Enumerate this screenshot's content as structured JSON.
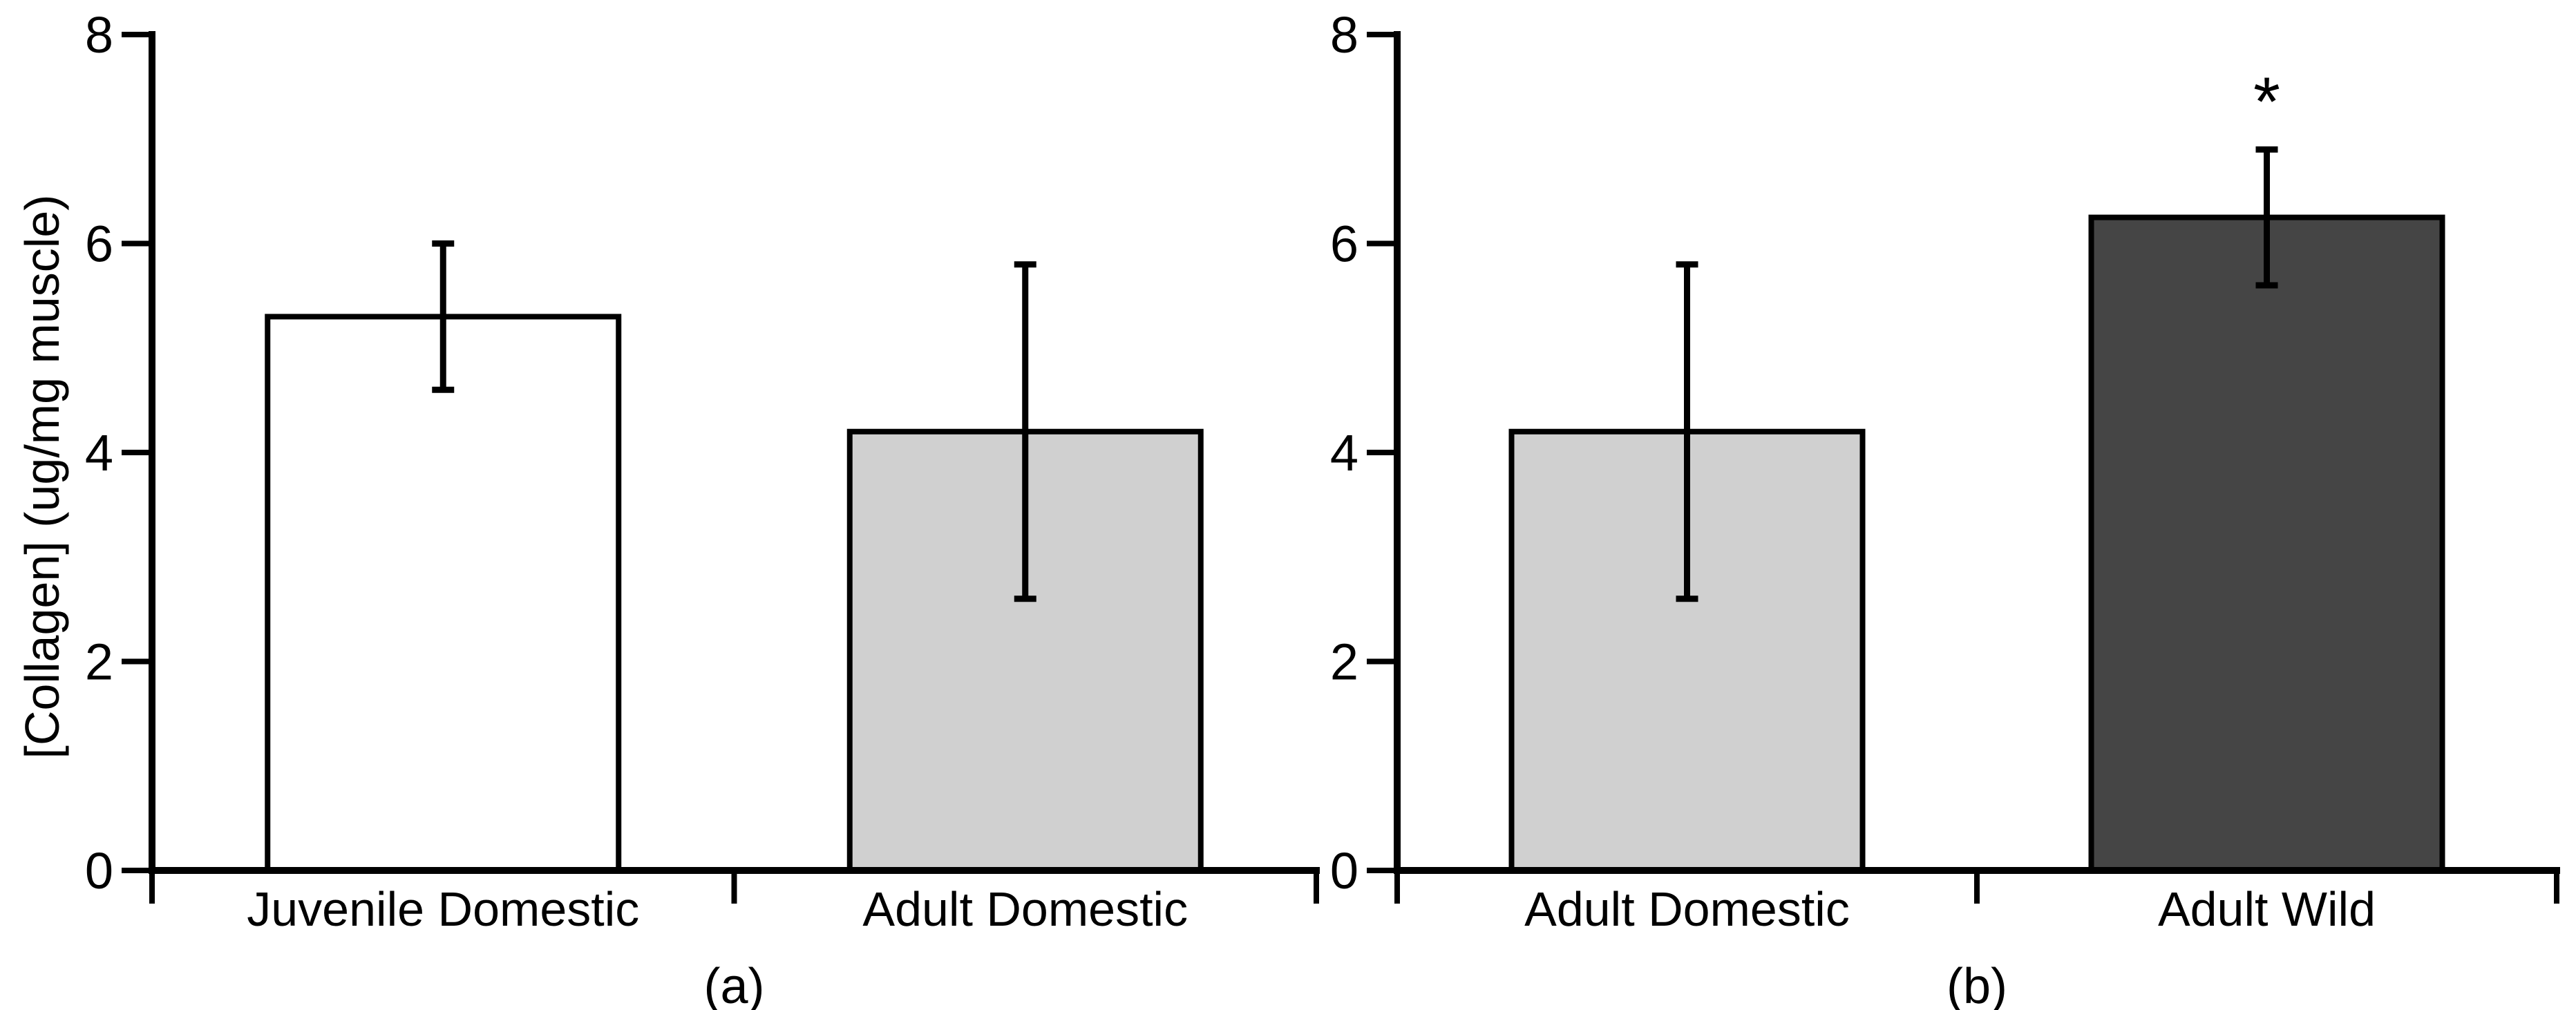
{
  "figure": {
    "background": "#ffffff",
    "axis_color": "#000000",
    "text_color": "#000000"
  },
  "chart_data": [
    {
      "type": "bar",
      "panel_label": "(a)",
      "title": "",
      "xlabel": "",
      "ylabel": "[Collagen] (ug/mg muscle)",
      "categories": [
        "Juvenile Domestic",
        "Adult Domestic"
      ],
      "values": [
        5.3,
        4.2
      ],
      "error_low": [
        4.6,
        2.6
      ],
      "error_high": [
        6.0,
        5.8
      ],
      "bar_colors": [
        "#ffffff",
        "#d0d0d0"
      ],
      "bar_edge_color": "#000000",
      "annotations": [
        "",
        ""
      ],
      "ylim": [
        0,
        8
      ],
      "yticks": [
        0,
        2,
        4,
        6,
        8
      ],
      "grid": false,
      "legend": "none"
    },
    {
      "type": "bar",
      "panel_label": "(b)",
      "title": "",
      "xlabel": "",
      "ylabel": "",
      "categories": [
        "Adult Domestic",
        "Adult Wild"
      ],
      "values": [
        4.2,
        6.25
      ],
      "error_low": [
        2.6,
        5.6
      ],
      "error_high": [
        5.8,
        6.9
      ],
      "bar_colors": [
        "#d0d0d0",
        "#454545"
      ],
      "bar_edge_color": "#000000",
      "annotations": [
        "",
        "*"
      ],
      "ylim": [
        0,
        8
      ],
      "yticks": [
        0,
        2,
        4,
        6,
        8
      ],
      "grid": false,
      "legend": "none"
    }
  ]
}
